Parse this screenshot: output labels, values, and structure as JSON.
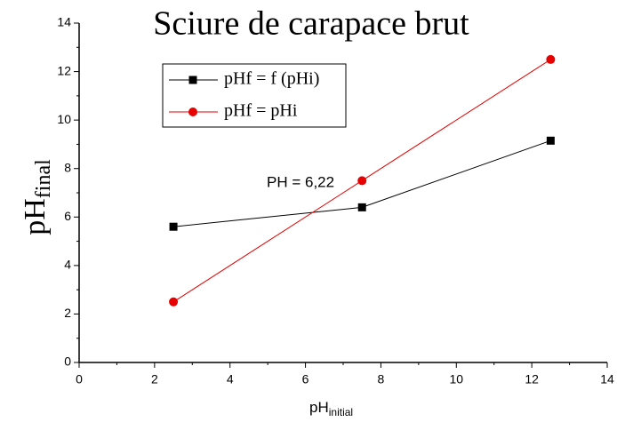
{
  "chart_data": {
    "type": "line",
    "title": "Sciure de carapace brut",
    "xlabel": "pH",
    "xlabel_sub": "initial",
    "ylabel": "pH",
    "ylabel_sub": "final",
    "annotation": "PH = 6,22",
    "x": [
      2.5,
      7.5,
      12.5
    ],
    "series": [
      {
        "name": "pHf = f (pHi)",
        "color": "#000000",
        "marker": "square",
        "values": [
          5.6,
          6.4,
          9.15
        ]
      },
      {
        "name": "pHf = pHi",
        "color": "#e60000",
        "marker": "circle",
        "values": [
          2.5,
          7.5,
          12.5
        ]
      }
    ],
    "xlim": [
      0,
      14
    ],
    "xticks": [
      0,
      2,
      4,
      6,
      8,
      10,
      12,
      14
    ],
    "ylim": [
      0,
      14
    ],
    "yticks": [
      0,
      2,
      4,
      6,
      8,
      10,
      12,
      14
    ]
  }
}
